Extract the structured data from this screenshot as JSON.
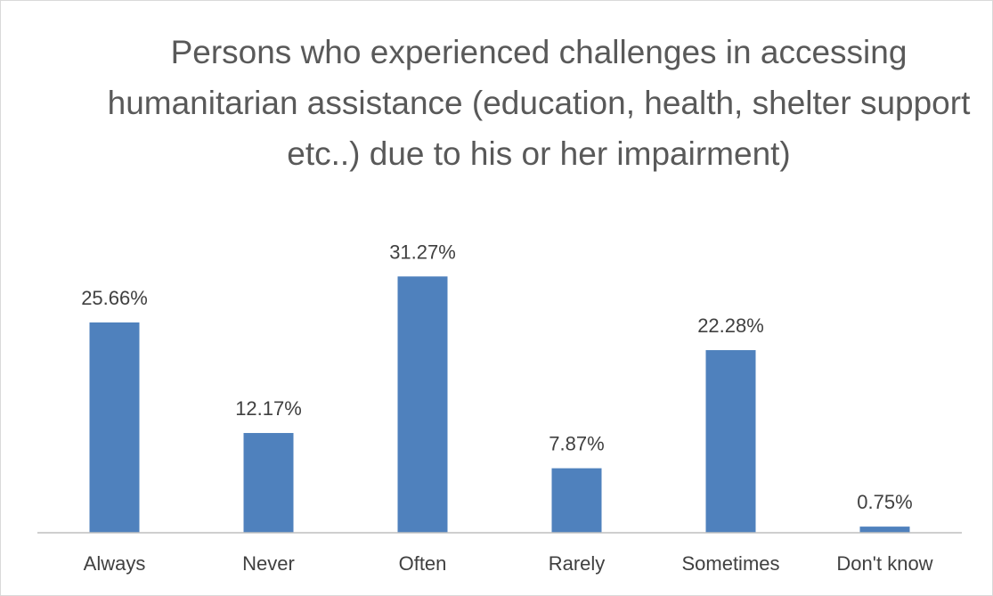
{
  "chart_data": {
    "type": "bar",
    "title": "Persons who experienced challenges in accessing humanitarian assistance (education, health, shelter support etc..) due to his or her impairment)",
    "categories": [
      "Always",
      "Never",
      "Often",
      "Rarely",
      "Sometimes",
      "Don't know"
    ],
    "values": [
      25.66,
      12.17,
      31.27,
      7.87,
      22.28,
      0.75
    ],
    "value_labels": [
      "25.66%",
      "12.17%",
      "31.27%",
      "7.87%",
      "22.28%",
      "0.75%"
    ],
    "unit": "%",
    "bar_color": "#4f81bd",
    "ylim": [
      0,
      35
    ],
    "grid": false,
    "legend": "none",
    "data_labels": true
  }
}
